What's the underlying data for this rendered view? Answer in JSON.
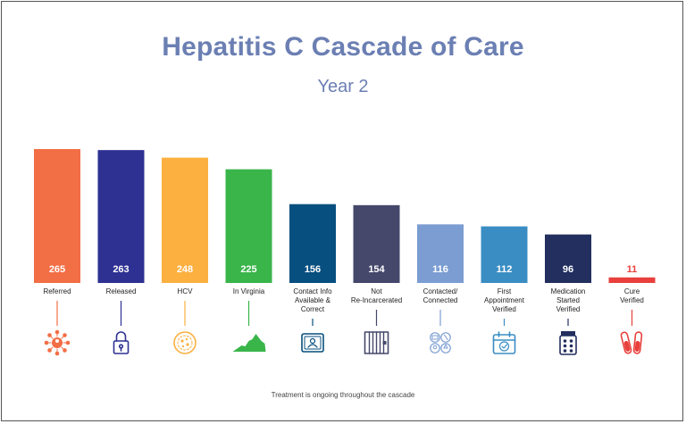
{
  "chart_data": {
    "type": "bar",
    "title": "Hepatitis C Cascade of Care",
    "subtitle": "Year 2",
    "categories": [
      [
        "Referred"
      ],
      [
        "Released"
      ],
      [
        "HCV"
      ],
      [
        "In Virginia"
      ],
      [
        "Contact Info",
        "Available &",
        "Correct"
      ],
      [
        "Not",
        "Re-Incarcerated"
      ],
      [
        "Contacted/",
        "Connected"
      ],
      [
        "First",
        "Appointment",
        "Verified"
      ],
      [
        "Medication",
        "Started",
        "Verified"
      ],
      [
        "Cure",
        "Verified"
      ]
    ],
    "values": [
      265,
      263,
      248,
      225,
      156,
      154,
      116,
      112,
      96,
      11
    ],
    "colors": [
      "#f26e45",
      "#2e3192",
      "#fbb040",
      "#39b54a",
      "#074f7f",
      "#45486b",
      "#7b9dd1",
      "#3a8dc3",
      "#222f5f",
      "#e8403c"
    ],
    "icons": [
      "network-people-icon",
      "padlock-icon",
      "virus-icon",
      "virginia-map-icon",
      "contact-card-icon",
      "jail-cell-icon",
      "contacts-icon",
      "calendar-check-icon",
      "pill-bottle-icon",
      "test-tubes-icon"
    ],
    "ylim": [
      0,
      265
    ],
    "grid": false,
    "footnote": "Treatment is ongoing throughout the cascade"
  }
}
